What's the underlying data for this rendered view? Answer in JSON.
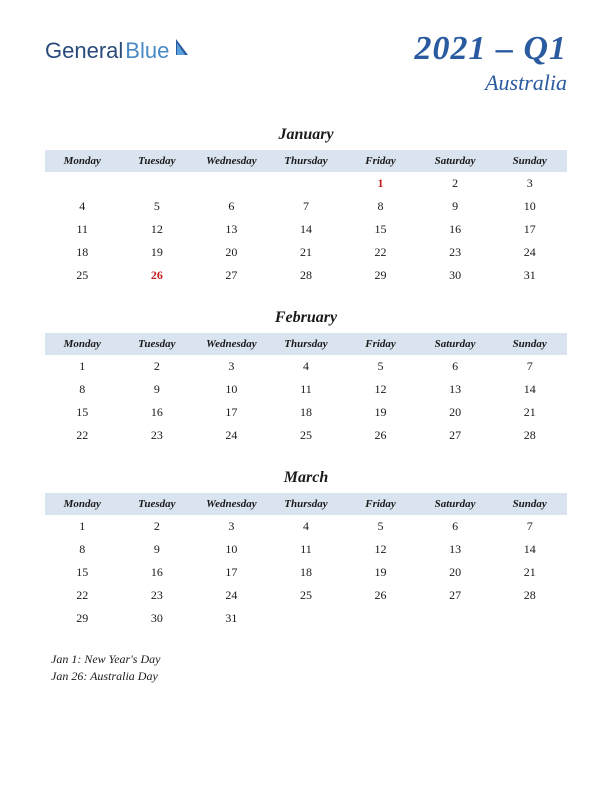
{
  "logo": {
    "part1": "General",
    "part2": "Blue"
  },
  "title": {
    "main": "2021 – Q1",
    "sub": "Australia"
  },
  "colors": {
    "header_bg": "#dae4f0",
    "title_color": "#2a5aa0",
    "holiday_color": "#c41e1e",
    "text_color": "#1a1a1a",
    "logo1": "#2a4a7a",
    "logo2": "#4a8ac4"
  },
  "day_headers": [
    "Monday",
    "Tuesday",
    "Wednesday",
    "Thursday",
    "Friday",
    "Saturday",
    "Sunday"
  ],
  "months": [
    {
      "name": "January",
      "weeks": [
        [
          "",
          "",
          "",
          "",
          "1",
          "2",
          "3"
        ],
        [
          "4",
          "5",
          "6",
          "7",
          "8",
          "9",
          "10"
        ],
        [
          "11",
          "12",
          "13",
          "14",
          "15",
          "16",
          "17"
        ],
        [
          "18",
          "19",
          "20",
          "21",
          "22",
          "23",
          "24"
        ],
        [
          "25",
          "26",
          "27",
          "28",
          "29",
          "30",
          "31"
        ]
      ],
      "holidays_idx": [
        [
          0,
          4
        ],
        [
          4,
          1
        ]
      ]
    },
    {
      "name": "February",
      "weeks": [
        [
          "1",
          "2",
          "3",
          "4",
          "5",
          "6",
          "7"
        ],
        [
          "8",
          "9",
          "10",
          "11",
          "12",
          "13",
          "14"
        ],
        [
          "15",
          "16",
          "17",
          "18",
          "19",
          "20",
          "21"
        ],
        [
          "22",
          "23",
          "24",
          "25",
          "26",
          "27",
          "28"
        ]
      ],
      "holidays_idx": []
    },
    {
      "name": "March",
      "weeks": [
        [
          "1",
          "2",
          "3",
          "4",
          "5",
          "6",
          "7"
        ],
        [
          "8",
          "9",
          "10",
          "11",
          "12",
          "13",
          "14"
        ],
        [
          "15",
          "16",
          "17",
          "18",
          "19",
          "20",
          "21"
        ],
        [
          "22",
          "23",
          "24",
          "25",
          "26",
          "27",
          "28"
        ],
        [
          "29",
          "30",
          "31",
          "",
          "",
          "",
          ""
        ]
      ],
      "holidays_idx": []
    }
  ],
  "holiday_list": [
    "Jan 1: New Year's Day",
    "Jan 26: Australia Day"
  ]
}
